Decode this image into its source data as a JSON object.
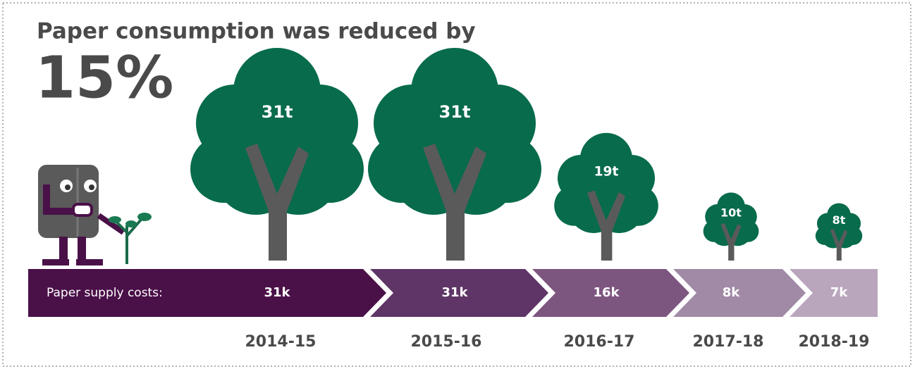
{
  "title": "Paper consumption was reduced by",
  "headline": "15%",
  "costs_label": "Paper supply costs:",
  "years": [
    {
      "period": "2014-15",
      "paper": "31t",
      "cost": "31k"
    },
    {
      "period": "2015-16",
      "paper": "31t",
      "cost": "31k"
    },
    {
      "period": "2016-17",
      "paper": "19t",
      "cost": "16k"
    },
    {
      "period": "2017-18",
      "paper": "10t",
      "cost": "8k"
    },
    {
      "period": "2018-19",
      "paper": "8t",
      "cost": "7k"
    }
  ]
}
